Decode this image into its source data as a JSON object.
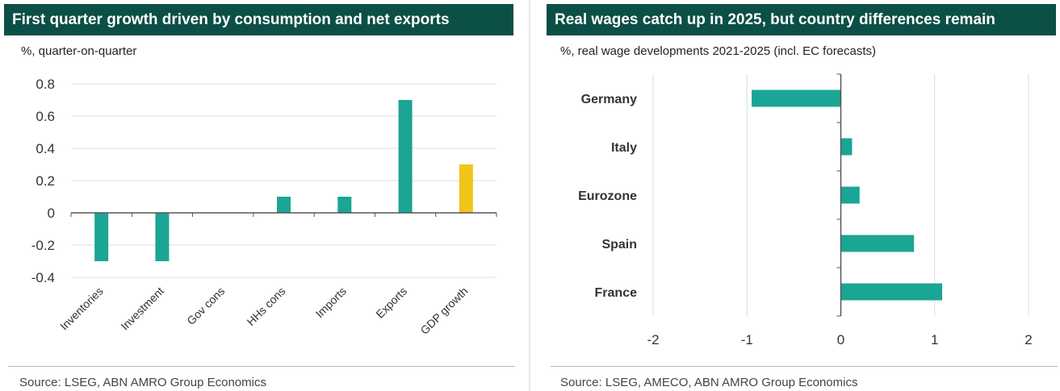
{
  "left": {
    "title": "First quarter growth driven by consumption and net exports",
    "subtitle": "%, quarter-on-quarter",
    "source": "Source: LSEG, ABN AMRO Group Economics"
  },
  "right": {
    "title": "Real wages catch up in 2025, but country differences remain",
    "subtitle": "%, real wage developments 2021-2025 (incl. EC forecasts)",
    "source": "Source: LSEG, AMECO, ABN AMRO Group Economics"
  },
  "chart_data": [
    {
      "type": "bar",
      "orientation": "vertical",
      "categories": [
        "Inventories",
        "Investment",
        "Gov cons",
        "HHs cons",
        "Imports",
        "Exports",
        "GDP growth"
      ],
      "values": [
        -0.3,
        -0.3,
        0.0,
        0.1,
        0.1,
        0.7,
        0.3
      ],
      "colors": [
        "#1aa595",
        "#1aa595",
        "#1aa595",
        "#1aa595",
        "#1aa595",
        "#1aa595",
        "#f0c419"
      ],
      "ylim": [
        -0.4,
        0.8
      ],
      "yticks": [
        0.8,
        0.6,
        0.4,
        0.2,
        0,
        -0.2,
        -0.4
      ],
      "ytick_labels": [
        "0.8",
        "0.6",
        "0.4",
        "0.2",
        "0",
        "-0.2",
        "-0.4"
      ],
      "grid": true
    },
    {
      "type": "bar",
      "orientation": "horizontal",
      "categories": [
        "Germany",
        "Italy",
        "Eurozone",
        "Spain",
        "France"
      ],
      "values": [
        -0.95,
        0.12,
        0.2,
        0.78,
        1.08
      ],
      "color": "#1aa595",
      "xlim": [
        -2,
        2
      ],
      "xticks": [
        -2,
        -1,
        0,
        1,
        2
      ],
      "xtick_labels": [
        "-2",
        "-1",
        "0",
        "1",
        "2"
      ],
      "grid": true
    }
  ]
}
